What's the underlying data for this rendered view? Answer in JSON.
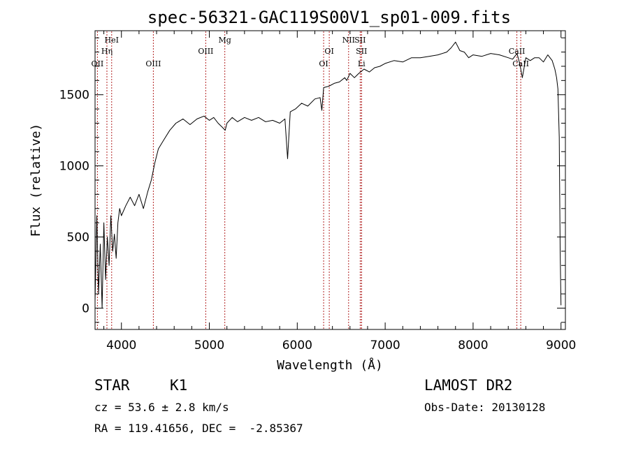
{
  "chart_data": {
    "type": "line",
    "title": "spec-56321-GAC119S00V1_sp01-009.fits",
    "xlabel": "Wavelength (Å)",
    "ylabel": "Flux (relative)",
    "xlim": [
      3700,
      9050
    ],
    "ylim": [
      -150,
      1950
    ],
    "x_ticks": [
      4000,
      5000,
      6000,
      7000,
      8000,
      9000
    ],
    "y_ticks": [
      0,
      500,
      1000,
      1500
    ],
    "grid": false,
    "series": [
      {
        "color": "#000000",
        "x": [
          3700,
          3720,
          3740,
          3760,
          3780,
          3800,
          3820,
          3840,
          3860,
          3880,
          3900,
          3920,
          3940,
          3960,
          3980,
          4000,
          4050,
          4100,
          4150,
          4200,
          4250,
          4300,
          4340,
          4380,
          4420,
          4480,
          4550,
          4620,
          4700,
          4780,
          4860,
          4940,
          5000,
          5050,
          5100,
          5150,
          5180,
          5200,
          5260,
          5320,
          5400,
          5480,
          5560,
          5640,
          5720,
          5800,
          5860,
          5890,
          5920,
          5980,
          6050,
          6120,
          6200,
          6260,
          6280,
          6300,
          6360,
          6420,
          6480,
          6540,
          6563,
          6600,
          6650,
          6700,
          6760,
          6820,
          6880,
          6940,
          7000,
          7100,
          7200,
          7300,
          7400,
          7500,
          7600,
          7700,
          7750,
          7800,
          7850,
          7900,
          7950,
          8000,
          8100,
          8200,
          8300,
          8400,
          8450,
          8500,
          8530,
          8560,
          8600,
          8650,
          8700,
          8750,
          8800,
          8850,
          8900,
          8930,
          8950,
          8965,
          8980,
          8990,
          9000
        ],
        "y": [
          50,
          650,
          100,
          450,
          0,
          600,
          200,
          500,
          300,
          650,
          400,
          520,
          350,
          600,
          700,
          650,
          720,
          780,
          720,
          800,
          700,
          820,
          900,
          1020,
          1120,
          1180,
          1250,
          1300,
          1330,
          1290,
          1330,
          1350,
          1320,
          1340,
          1300,
          1270,
          1250,
          1300,
          1340,
          1310,
          1340,
          1320,
          1340,
          1310,
          1320,
          1300,
          1330,
          1050,
          1380,
          1400,
          1440,
          1420,
          1470,
          1480,
          1390,
          1550,
          1560,
          1580,
          1590,
          1620,
          1600,
          1650,
          1620,
          1650,
          1680,
          1660,
          1690,
          1700,
          1720,
          1740,
          1730,
          1760,
          1760,
          1770,
          1780,
          1800,
          1830,
          1870,
          1810,
          1800,
          1760,
          1780,
          1770,
          1790,
          1780,
          1760,
          1750,
          1790,
          1720,
          1620,
          1760,
          1740,
          1760,
          1760,
          1730,
          1780,
          1740,
          1680,
          1620,
          1540,
          1200,
          400,
          20
        ]
      }
    ],
    "lines": [
      {
        "x": 3727,
        "label": "OII",
        "row": 3
      },
      {
        "x": 3835,
        "label": "Hη",
        "row": 2
      },
      {
        "x": 3889,
        "label": "HeI",
        "row": 1
      },
      {
        "x": 4363,
        "label": "OIII",
        "row": 3
      },
      {
        "x": 4959,
        "label": "OIII",
        "row": 2
      },
      {
        "x": 5176,
        "label": "Mg",
        "row": 1
      },
      {
        "x": 6300,
        "label": "OI",
        "row": 3
      },
      {
        "x": 6364,
        "label": "OI",
        "row": 2
      },
      {
        "x": 6584,
        "label": "NII",
        "row": 1
      },
      {
        "x": 6716,
        "label": "SII",
        "row": 1
      },
      {
        "x": 6731,
        "label": "SII",
        "row": 2
      },
      {
        "x": 6731,
        "label": "Li",
        "row": 3
      },
      {
        "x": 8498,
        "label": "CaII",
        "row": 2
      },
      {
        "x": 8542,
        "label": "CaII",
        "row": 3
      }
    ],
    "line_color": "#b22222"
  },
  "info": {
    "cls": "STAR",
    "subclass": "K1",
    "survey": "LAMOST DR2",
    "cz": "cz = 53.6 ± 2.8 km/s",
    "obs_date": "Obs-Date: 20130128",
    "coords": "RA = 119.41656, DEC =  -2.85367"
  }
}
